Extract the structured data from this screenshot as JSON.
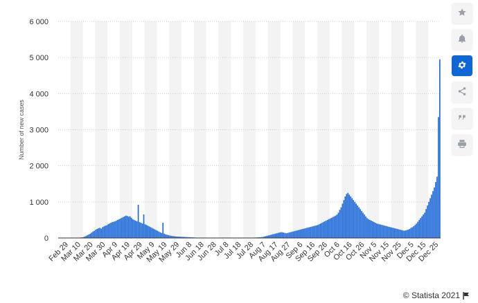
{
  "colors": {
    "bar": "#1f6ad9",
    "band": "#f3f3f3",
    "grid": "#cfcfcf"
  },
  "toolbar": {
    "items": [
      {
        "icon": "star-icon"
      },
      {
        "icon": "bell-icon"
      },
      {
        "icon": "gear-icon",
        "active": true
      },
      {
        "icon": "share-icon"
      },
      {
        "icon": "quote-icon"
      },
      {
        "icon": "print-icon"
      }
    ]
  },
  "credit": {
    "text": "© Statista 2021"
  },
  "chart_data": {
    "type": "bar",
    "title": "",
    "xlabel": "",
    "ylabel": "Number of new cases",
    "ylim": [
      0,
      6000
    ],
    "yticks": [
      0,
      1000,
      2000,
      3000,
      4000,
      5000,
      6000
    ],
    "ytick_labels": [
      "0",
      "1 000",
      "2 000",
      "3 000",
      "4 000",
      "5 000",
      "6 000"
    ],
    "x_tick_labels": [
      "Feb 29",
      "Mar 10",
      "Mar 20",
      "Mar 30",
      "Apr 9",
      "Apr 19",
      "Apr 29",
      "May 9",
      "May 19",
      "May 29",
      "Jun 8",
      "Jun 18",
      "Jun 28",
      "Jul 8",
      "Jul 18",
      "Jul 28",
      "Aug 7",
      "Aug 17",
      "Aug 27",
      "Sep 6",
      "Sep 16",
      "Sep 26",
      "Oct 6",
      "Oct 16",
      "Oct 26",
      "Nov 5",
      "Nov 15",
      "Nov 25",
      "Dec 5",
      "Dec 15",
      "Dec 25"
    ],
    "grid": true,
    "legend": "none",
    "series": [
      {
        "values": [
          0,
          0,
          0,
          0,
          0,
          0,
          0,
          0,
          0,
          0,
          0,
          0,
          2,
          5,
          8,
          10,
          14,
          18,
          25,
          40,
          60,
          80,
          100,
          120,
          150,
          180,
          200,
          230,
          250,
          270,
          280,
          260,
          300,
          320,
          340,
          350,
          380,
          400,
          420,
          440,
          450,
          460,
          480,
          500,
          520,
          540,
          560,
          580,
          600,
          620,
          610,
          590,
          600,
          560,
          520,
          500,
          480,
          460,
          920,
          440,
          420,
          400,
          650,
          380,
          360,
          340,
          320,
          300,
          280,
          260,
          240,
          220,
          200,
          180,
          160,
          140,
          420,
          120,
          100,
          90,
          80,
          70,
          60,
          55,
          50,
          45,
          40,
          38,
          36,
          34,
          32,
          30,
          28,
          26,
          24,
          22,
          20,
          18,
          16,
          14,
          12,
          10,
          10,
          10,
          10,
          10,
          10,
          10,
          10,
          10,
          10,
          10,
          10,
          10,
          10,
          10,
          10,
          10,
          10,
          10,
          10,
          10,
          10,
          10,
          10,
          10,
          10,
          10,
          10,
          10,
          10,
          10,
          10,
          10,
          10,
          10,
          10,
          10,
          10,
          10,
          10,
          10,
          10,
          12,
          14,
          16,
          18,
          20,
          25,
          30,
          40,
          50,
          60,
          70,
          80,
          90,
          100,
          110,
          120,
          130,
          140,
          150,
          160,
          160,
          150,
          140,
          130,
          140,
          150,
          160,
          170,
          180,
          190,
          200,
          210,
          220,
          230,
          240,
          250,
          260,
          270,
          280,
          290,
          300,
          310,
          320,
          330,
          340,
          350,
          360,
          380,
          400,
          420,
          440,
          460,
          480,
          500,
          520,
          540,
          560,
          580,
          600,
          620,
          650,
          700,
          780,
          850,
          950,
          1050,
          1150,
          1220,
          1250,
          1200,
          1150,
          1100,
          1050,
          1000,
          950,
          900,
          850,
          800,
          750,
          700,
          650,
          600,
          550,
          520,
          500,
          480,
          460,
          440,
          420,
          400,
          390,
          380,
          370,
          360,
          350,
          340,
          330,
          320,
          310,
          300,
          290,
          280,
          270,
          260,
          250,
          240,
          230,
          220,
          210,
          200,
          210,
          220,
          230,
          250,
          280,
          300,
          330,
          360,
          400,
          450,
          500,
          550,
          600,
          650,
          700,
          800,
          900,
          1000,
          1100,
          1200,
          1300,
          1400,
          1550,
          1700,
          3350,
          4950
        ]
      }
    ]
  }
}
